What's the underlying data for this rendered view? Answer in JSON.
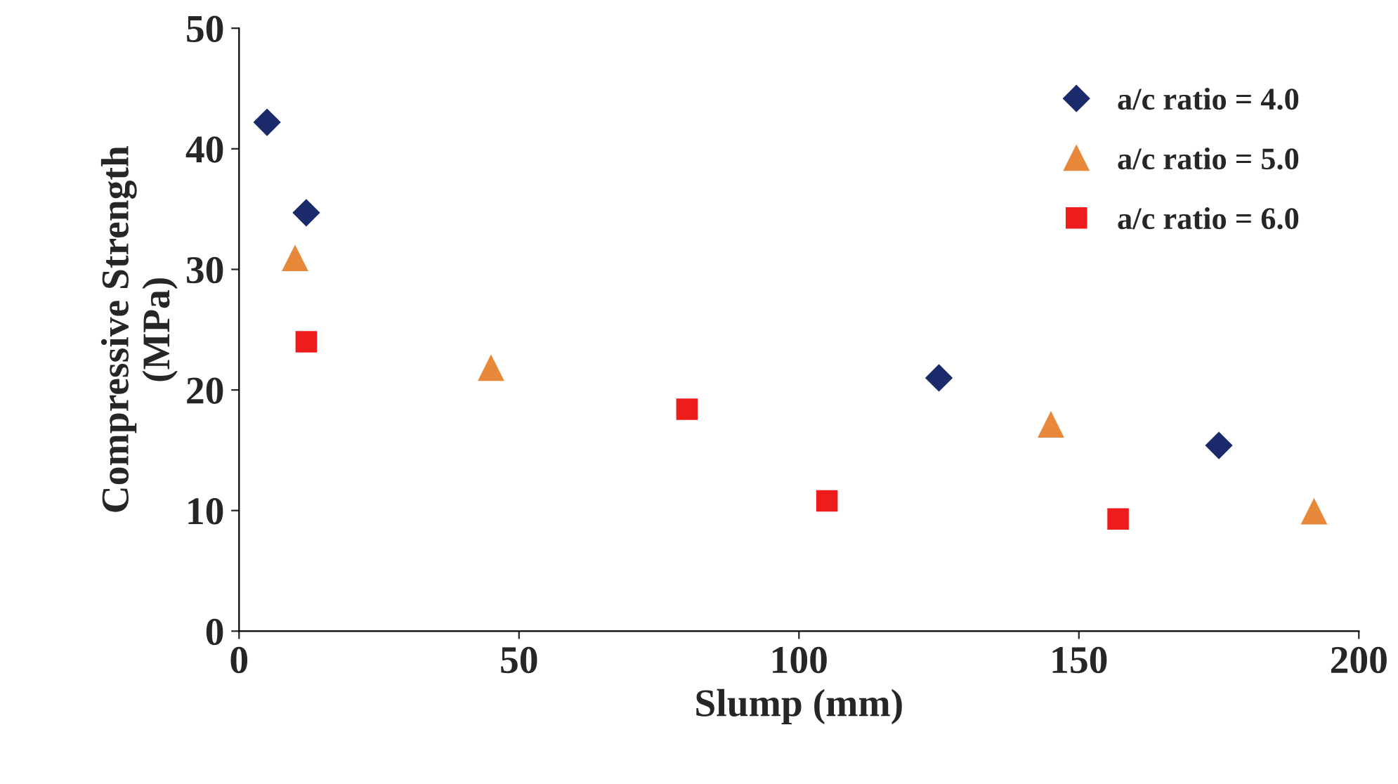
{
  "chart_data": {
    "type": "scatter",
    "xlabel": "Slump (mm)",
    "ylabel": "Compressive Strength\n(MPa)",
    "xlim": [
      0,
      200
    ],
    "xticks": [
      0,
      50,
      100,
      150,
      200
    ],
    "ylim": [
      0,
      50
    ],
    "yticks": [
      0,
      10,
      20,
      30,
      40,
      50
    ],
    "grid": false,
    "legend": "top right",
    "series": [
      {
        "name": "a/c ratio = 4.0",
        "color": "#1b2a6b",
        "marker": "diamond",
        "x": [
          5,
          12,
          125,
          175
        ],
        "values": [
          42.2,
          34.7,
          21.0,
          15.4
        ]
      },
      {
        "name": "a/c ratio = 5.0",
        "color": "#e8883a",
        "marker": "triangle",
        "x": [
          10,
          45,
          145,
          192
        ],
        "values": [
          30.9,
          21.8,
          17.1,
          9.9
        ]
      },
      {
        "name": "a/c ratio = 6.0",
        "color": "#ee1c1c",
        "marker": "square",
        "x": [
          12,
          80,
          105,
          157
        ],
        "values": [
          24.0,
          18.4,
          10.8,
          9.3
        ]
      }
    ]
  }
}
